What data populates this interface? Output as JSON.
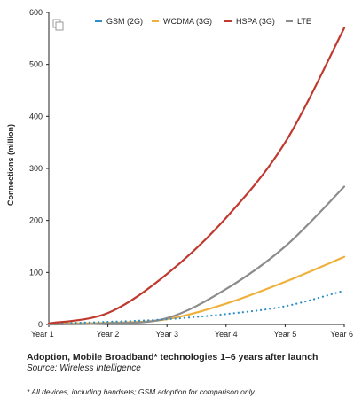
{
  "chart_data": {
    "type": "line",
    "title": "",
    "xlabel": "",
    "ylabel": "Connections (million)",
    "categories": [
      "Year 1",
      "Year 2",
      "Year 3",
      "Year 4",
      "Year 5",
      "Year 6"
    ],
    "ylim": [
      0,
      600
    ],
    "yticks": [
      0,
      100,
      200,
      300,
      400,
      500,
      600
    ],
    "grid": false,
    "legend_position": "top",
    "series": [
      {
        "name": "GSM (2G)",
        "color": "#2f8fc9",
        "style": "dotted",
        "points": [
          [
            1,
            2
          ],
          [
            2,
            5
          ],
          [
            3,
            10
          ],
          [
            4,
            20
          ],
          [
            5,
            35
          ],
          [
            6,
            65
          ]
        ]
      },
      {
        "name": "WCDMA (3G)",
        "color": "#f0b03c",
        "style": "solid",
        "points": [
          [
            1,
            2
          ],
          [
            2,
            3
          ],
          [
            3,
            10
          ],
          [
            4,
            40
          ],
          [
            5,
            82
          ],
          [
            6,
            130
          ]
        ]
      },
      {
        "name": "HSPA (3G)",
        "color": "#c0392f",
        "style": "solid",
        "points": [
          [
            1,
            2
          ],
          [
            2,
            22
          ],
          [
            3,
            97
          ],
          [
            4,
            205
          ],
          [
            5,
            350
          ],
          [
            6,
            570
          ]
        ]
      },
      {
        "name": "LTE",
        "color": "#8c8c8c",
        "style": "solid",
        "points": [
          [
            1,
            0
          ],
          [
            2,
            2
          ],
          [
            3,
            12
          ],
          [
            4,
            68
          ],
          [
            5,
            150
          ],
          [
            6,
            265
          ]
        ]
      }
    ]
  },
  "caption": {
    "title": "Adoption, Mobile Broadband* technologies 1–6 years after launch",
    "source": "Source: Wireless Intelligence",
    "note": "* All devices, including handsets; GSM adoption for comparison only"
  }
}
